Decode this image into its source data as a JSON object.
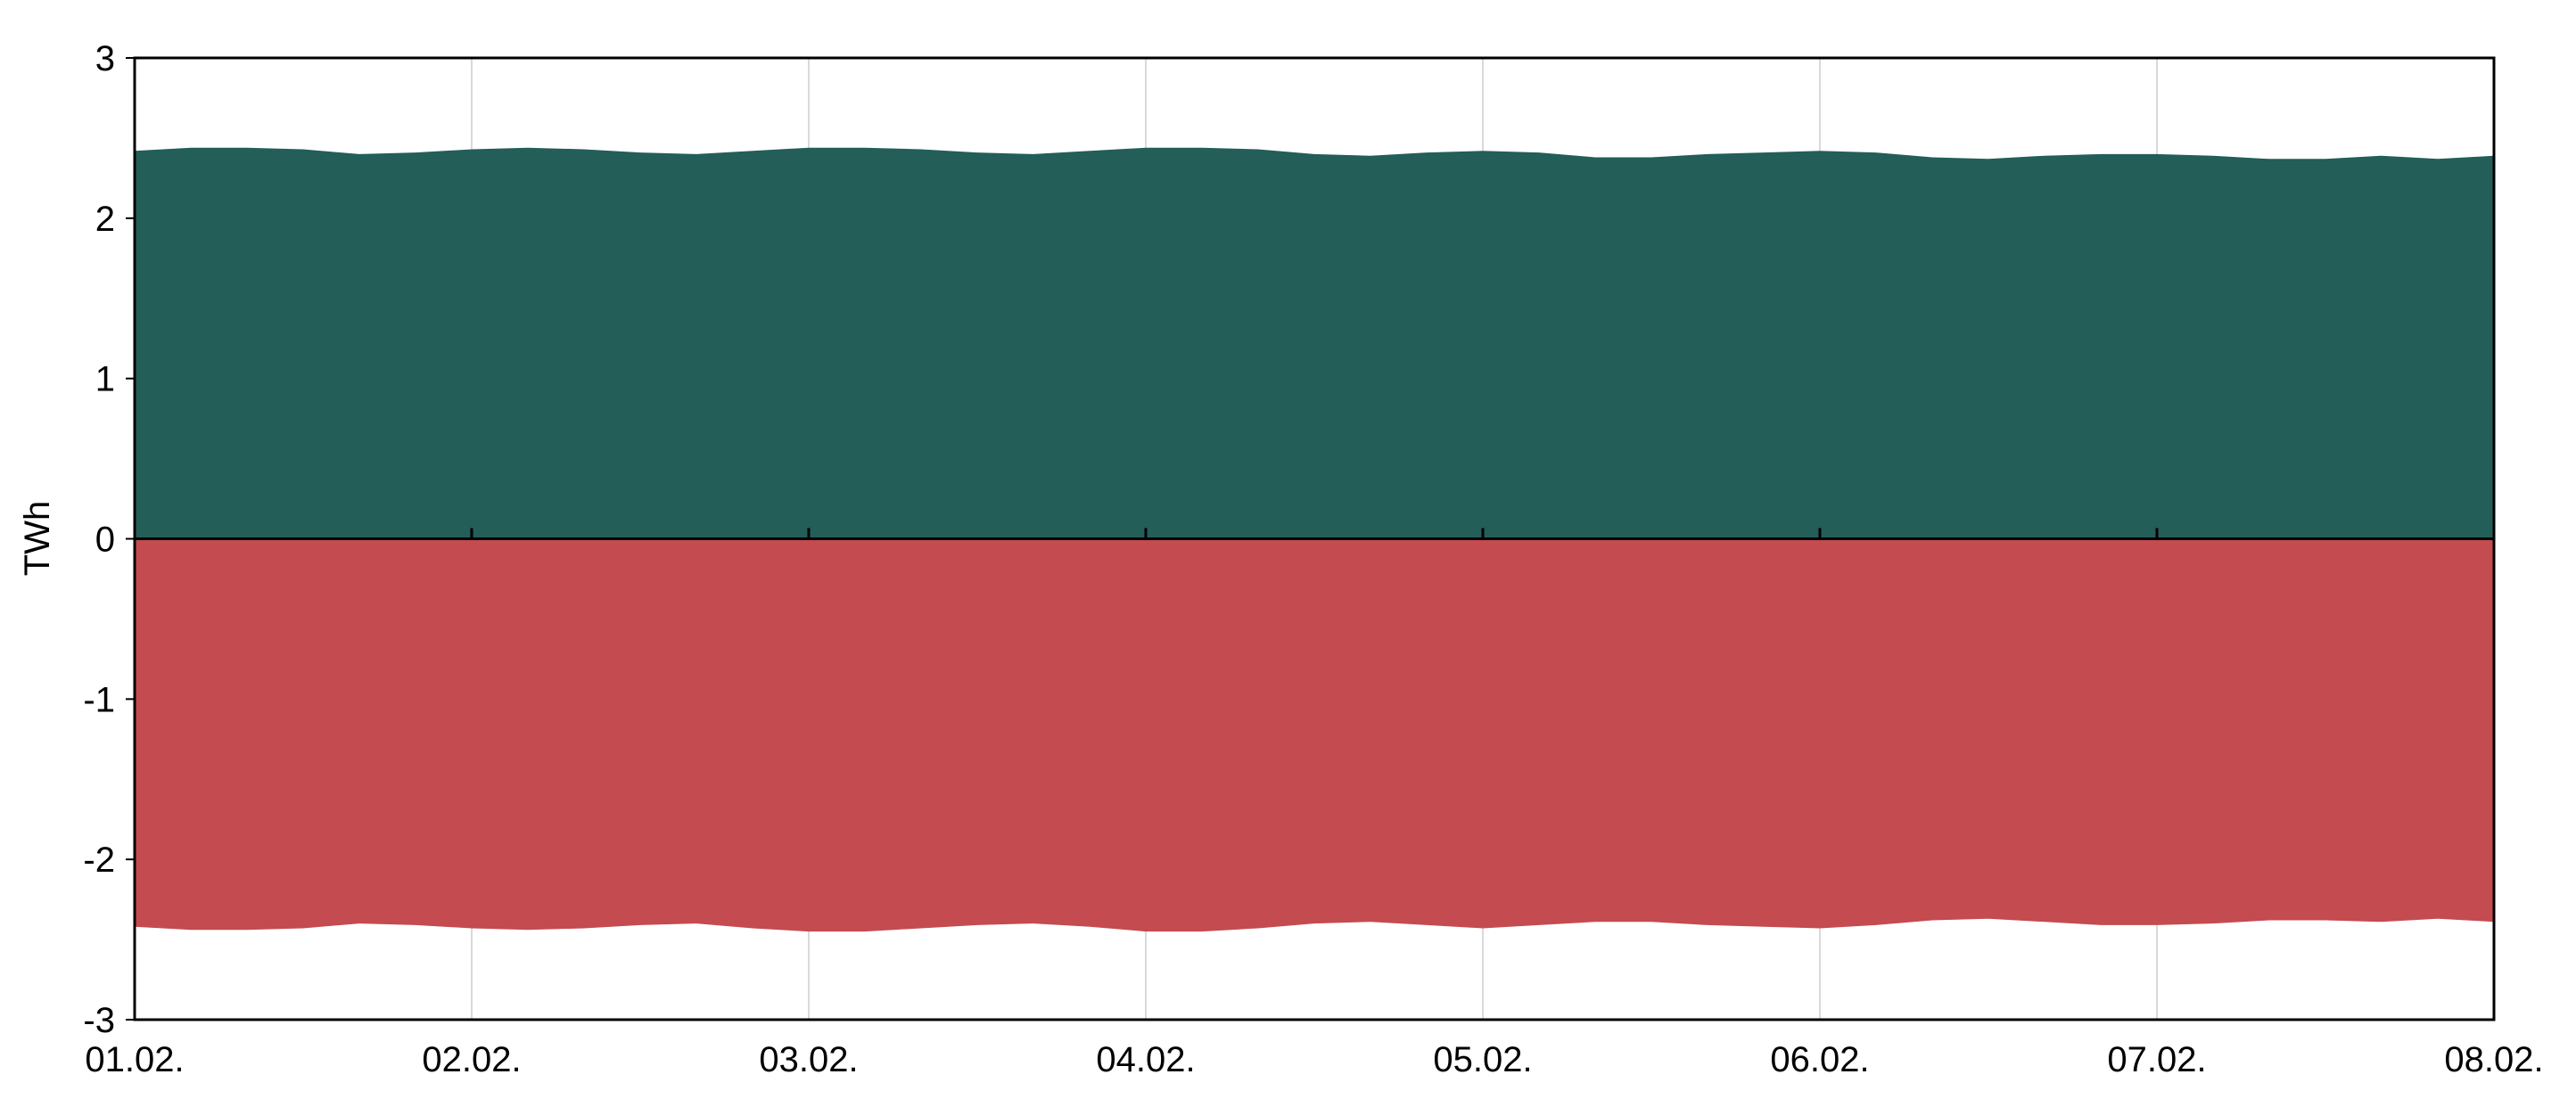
{
  "chart_data": {
    "type": "area",
    "y_label": "TWh",
    "categories": [
      "01.02.",
      null,
      null,
      null,
      null,
      null,
      "02.02.",
      null,
      null,
      null,
      null,
      null,
      "03.02.",
      null,
      null,
      null,
      null,
      null,
      "04.02.",
      null,
      null,
      null,
      null,
      null,
      "05.02.",
      null,
      null,
      null,
      null,
      null,
      "06.02.",
      null,
      null,
      null,
      null,
      null,
      "07.02.",
      null,
      null,
      null,
      null,
      null,
      "08.02."
    ],
    "series": [
      {
        "color": "#235e59",
        "values": [
          2.42,
          2.44,
          2.44,
          2.43,
          2.4,
          2.41,
          2.43,
          2.44,
          2.43,
          2.41,
          2.4,
          2.42,
          2.44,
          2.44,
          2.43,
          2.41,
          2.4,
          2.42,
          2.44,
          2.44,
          2.43,
          2.4,
          2.39,
          2.41,
          2.42,
          2.41,
          2.38,
          2.38,
          2.4,
          2.41,
          2.42,
          2.41,
          2.38,
          2.37,
          2.39,
          2.4,
          2.4,
          2.39,
          2.37,
          2.37,
          2.39,
          2.37,
          2.39
        ]
      },
      {
        "color": "#c44b50",
        "values": [
          -2.42,
          -2.44,
          -2.44,
          -2.43,
          -2.4,
          -2.41,
          -2.43,
          -2.44,
          -2.43,
          -2.41,
          -2.4,
          -2.43,
          -2.45,
          -2.45,
          -2.43,
          -2.41,
          -2.4,
          -2.42,
          -2.45,
          -2.45,
          -2.43,
          -2.4,
          -2.39,
          -2.41,
          -2.43,
          -2.41,
          -2.39,
          -2.39,
          -2.41,
          -2.42,
          -2.43,
          -2.41,
          -2.38,
          -2.37,
          -2.39,
          -2.41,
          -2.41,
          -2.4,
          -2.38,
          -2.38,
          -2.39,
          -2.37,
          -2.39
        ]
      }
    ],
    "ylim": [
      -3,
      3
    ],
    "yticks": [
      -3,
      -2,
      -1,
      0,
      1,
      2,
      3
    ],
    "grid": true
  }
}
